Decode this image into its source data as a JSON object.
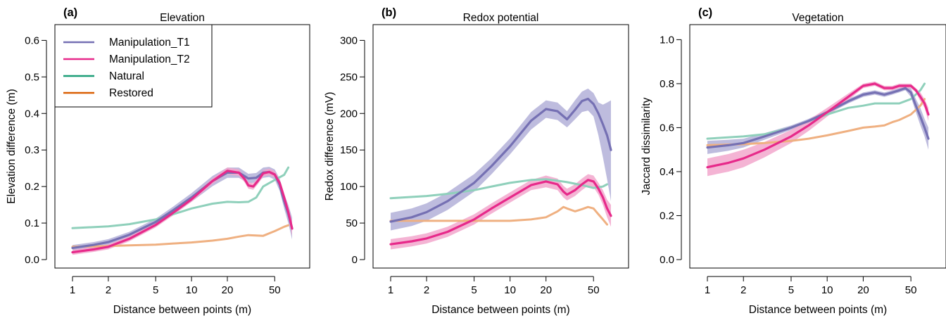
{
  "figure": {
    "xlabel": "Distance between points (m)",
    "legend": {
      "placement": "top-left of panel (a)",
      "entries": [
        {
          "label": "Manipulation_T1",
          "color": "#7570b3"
        },
        {
          "label": "Manipulation_T2",
          "color": "#e7298a"
        },
        {
          "label": "Natural",
          "color": "#1b9e77"
        },
        {
          "label": "Restored",
          "color": "#d95f02"
        }
      ]
    }
  },
  "chart_data": [
    {
      "type": "line",
      "letter": "(a)",
      "title": "Elevation",
      "xlabel": "Distance between points (m)",
      "ylabel": "Elevation difference (m)",
      "xscale": "log",
      "xlim": [
        1,
        70
      ],
      "ylim": [
        0.0,
        0.62
      ],
      "xticks": [
        1,
        2,
        5,
        10,
        20,
        50
      ],
      "yticks": [
        0.0,
        0.1,
        0.2,
        0.3,
        0.4,
        0.5,
        0.6
      ],
      "grid": false,
      "series": [
        {
          "name": "Manipulation_T1",
          "color": "#7570b3",
          "band_color": "#b3b0d8",
          "x": [
            1,
            1.5,
            2,
            3,
            5,
            7,
            10,
            15,
            20,
            25,
            30,
            35,
            40,
            45,
            50,
            55,
            60,
            65,
            70
          ],
          "y": [
            0.032,
            0.04,
            0.048,
            0.068,
            0.103,
            0.135,
            0.17,
            0.215,
            0.238,
            0.238,
            0.222,
            0.224,
            0.238,
            0.24,
            0.233,
            0.205,
            0.16,
            0.125,
            0.085
          ],
          "lower": [
            0.024,
            0.032,
            0.04,
            0.06,
            0.094,
            0.125,
            0.158,
            0.201,
            0.224,
            0.224,
            0.209,
            0.211,
            0.224,
            0.226,
            0.219,
            0.188,
            0.14,
            0.1,
            0.055
          ],
          "upper": [
            0.04,
            0.048,
            0.056,
            0.076,
            0.112,
            0.145,
            0.182,
            0.229,
            0.252,
            0.252,
            0.235,
            0.237,
            0.252,
            0.254,
            0.247,
            0.222,
            0.18,
            0.15,
            0.115
          ]
        },
        {
          "name": "Manipulation_T2",
          "color": "#e7298a",
          "band_color": "#f2a7cd",
          "x": [
            1,
            1.5,
            2,
            3,
            5,
            7,
            10,
            15,
            20,
            25,
            28,
            30,
            33,
            36,
            40,
            45,
            50,
            55,
            60,
            65,
            70
          ],
          "y": [
            0.02,
            0.028,
            0.035,
            0.057,
            0.095,
            0.128,
            0.165,
            0.215,
            0.243,
            0.238,
            0.22,
            0.203,
            0.2,
            0.215,
            0.236,
            0.24,
            0.233,
            0.21,
            0.17,
            0.13,
            0.085
          ],
          "lower": [
            0.013,
            0.021,
            0.028,
            0.05,
            0.088,
            0.121,
            0.158,
            0.207,
            0.234,
            0.229,
            0.211,
            0.194,
            0.191,
            0.206,
            0.227,
            0.231,
            0.224,
            0.2,
            0.158,
            0.115,
            0.065
          ],
          "upper": [
            0.027,
            0.035,
            0.042,
            0.064,
            0.102,
            0.135,
            0.172,
            0.223,
            0.252,
            0.247,
            0.229,
            0.212,
            0.209,
            0.224,
            0.245,
            0.249,
            0.242,
            0.22,
            0.182,
            0.145,
            0.105
          ]
        },
        {
          "name": "Natural",
          "color": "#1b9e77",
          "band_color": "#8fd0bb",
          "x": [
            1,
            2,
            3,
            5,
            7,
            10,
            15,
            20,
            25,
            30,
            35,
            40,
            50,
            60,
            65
          ],
          "y": [
            0.086,
            0.091,
            0.097,
            0.11,
            0.124,
            0.14,
            0.153,
            0.158,
            0.157,
            0.158,
            0.17,
            0.2,
            0.218,
            0.232,
            0.252
          ]
        },
        {
          "name": "Restored",
          "color": "#d95f02",
          "band_color": "#efb081",
          "x": [
            1,
            2,
            3,
            5,
            7,
            10,
            15,
            20,
            25,
            30,
            35,
            40,
            50,
            60,
            65
          ],
          "y": [
            0.035,
            0.037,
            0.039,
            0.041,
            0.044,
            0.047,
            0.052,
            0.057,
            0.063,
            0.067,
            0.066,
            0.065,
            0.078,
            0.09,
            0.094
          ]
        }
      ]
    },
    {
      "type": "line",
      "letter": "(b)",
      "title": "Redox potential",
      "xlabel": "Distance between points (m)",
      "ylabel": "Redox difference (mV)",
      "xscale": "log",
      "xlim": [
        1,
        70
      ],
      "ylim": [
        0,
        310
      ],
      "xticks": [
        1,
        2,
        5,
        10,
        20,
        50
      ],
      "yticks": [
        0,
        50,
        100,
        150,
        200,
        250,
        300
      ],
      "grid": false,
      "series": [
        {
          "name": "Manipulation_T1",
          "color": "#7570b3",
          "band_color": "#b3b0d8",
          "x": [
            1,
            1.5,
            2,
            3,
            5,
            7,
            10,
            15,
            20,
            25,
            30,
            35,
            40,
            45,
            50,
            55,
            60,
            65,
            70
          ],
          "y": [
            52,
            58,
            65,
            80,
            105,
            128,
            155,
            190,
            206,
            203,
            192,
            205,
            217,
            220,
            213,
            200,
            185,
            170,
            150
          ],
          "lower": [
            40,
            46,
            53,
            68,
            93,
            117,
            144,
            178,
            194,
            191,
            181,
            192,
            202,
            204,
            196,
            170,
            140,
            110,
            80
          ],
          "upper": [
            64,
            70,
            77,
            92,
            117,
            139,
            166,
            202,
            218,
            215,
            203,
            218,
            230,
            234,
            228,
            215,
            212,
            215,
            218
          ]
        },
        {
          "name": "Manipulation_T2",
          "color": "#e7298a",
          "band_color": "#f2a7cd",
          "x": [
            1,
            1.5,
            2,
            3,
            5,
            7,
            10,
            15,
            20,
            25,
            28,
            30,
            35,
            40,
            45,
            50,
            55,
            60,
            65,
            70
          ],
          "y": [
            21,
            25,
            29,
            38,
            55,
            70,
            85,
            102,
            107,
            103,
            93,
            89,
            95,
            103,
            109,
            107,
            97,
            85,
            70,
            60
          ],
          "lower": [
            14,
            18,
            22,
            31,
            48,
            63,
            78,
            95,
            99,
            95,
            85,
            81,
            87,
            95,
            101,
            99,
            89,
            75,
            58,
            45
          ],
          "upper": [
            28,
            32,
            36,
            45,
            62,
            77,
            92,
            109,
            115,
            111,
            101,
            97,
            103,
            111,
            117,
            115,
            105,
            95,
            82,
            75
          ]
        },
        {
          "name": "Natural",
          "color": "#1b9e77",
          "band_color": "#8fd0bb",
          "x": [
            1,
            2,
            3,
            5,
            7,
            10,
            15,
            20,
            25,
            30,
            40,
            50,
            60,
            65
          ],
          "y": [
            84,
            87,
            90,
            95,
            100,
            105,
            109,
            110,
            108,
            106,
            102,
            98,
            100,
            103
          ]
        },
        {
          "name": "Restored",
          "color": "#d95f02",
          "band_color": "#efb081",
          "x": [
            1,
            2,
            3,
            5,
            7,
            10,
            15,
            20,
            25,
            28,
            30,
            35,
            40,
            45,
            50,
            55,
            60,
            65
          ],
          "y": [
            53,
            53,
            53,
            53,
            53,
            53,
            55,
            58,
            66,
            72,
            70,
            66,
            69,
            72,
            70,
            62,
            55,
            48
          ]
        }
      ]
    },
    {
      "type": "line",
      "letter": "(c)",
      "title": "Vegetation",
      "xlabel": "Distance between points (m)",
      "ylabel": "Jaccard dissimilarity",
      "xscale": "log",
      "xlim": [
        1,
        70
      ],
      "ylim": [
        0.0,
        1.03
      ],
      "xticks": [
        1,
        2,
        5,
        10,
        20,
        50
      ],
      "yticks": [
        0.0,
        0.2,
        0.4,
        0.6,
        0.8,
        1.0
      ],
      "grid": false,
      "series": [
        {
          "name": "Manipulation_T1",
          "color": "#7570b3",
          "band_color": "#b3b0d8",
          "x": [
            1,
            1.5,
            2,
            3,
            5,
            7,
            10,
            15,
            20,
            25,
            30,
            35,
            40,
            45,
            50,
            55,
            60,
            65,
            70
          ],
          "y": [
            0.51,
            0.52,
            0.53,
            0.56,
            0.6,
            0.63,
            0.67,
            0.72,
            0.75,
            0.76,
            0.75,
            0.76,
            0.77,
            0.78,
            0.76,
            0.7,
            0.65,
            0.6,
            0.55
          ],
          "lower": [
            0.48,
            0.495,
            0.51,
            0.545,
            0.59,
            0.62,
            0.66,
            0.71,
            0.74,
            0.75,
            0.74,
            0.75,
            0.76,
            0.77,
            0.74,
            0.67,
            0.61,
            0.56,
            0.5
          ],
          "upper": [
            0.54,
            0.545,
            0.55,
            0.575,
            0.61,
            0.64,
            0.68,
            0.73,
            0.76,
            0.77,
            0.76,
            0.77,
            0.78,
            0.79,
            0.78,
            0.73,
            0.69,
            0.64,
            0.6
          ]
        },
        {
          "name": "Manipulation_T2",
          "color": "#e7298a",
          "band_color": "#f2a7cd",
          "x": [
            1,
            1.5,
            2,
            3,
            5,
            7,
            10,
            15,
            20,
            25,
            30,
            35,
            40,
            45,
            50,
            55,
            60,
            65,
            70
          ],
          "y": [
            0.42,
            0.44,
            0.46,
            0.5,
            0.56,
            0.61,
            0.67,
            0.74,
            0.79,
            0.8,
            0.78,
            0.78,
            0.79,
            0.79,
            0.79,
            0.77,
            0.74,
            0.71,
            0.66
          ],
          "lower": [
            0.38,
            0.4,
            0.42,
            0.465,
            0.53,
            0.585,
            0.65,
            0.725,
            0.78,
            0.79,
            0.77,
            0.77,
            0.78,
            0.78,
            0.78,
            0.76,
            0.72,
            0.69,
            0.63
          ],
          "upper": [
            0.46,
            0.48,
            0.5,
            0.535,
            0.59,
            0.635,
            0.69,
            0.755,
            0.8,
            0.81,
            0.79,
            0.79,
            0.8,
            0.8,
            0.8,
            0.78,
            0.76,
            0.73,
            0.69
          ]
        },
        {
          "name": "Natural",
          "color": "#1b9e77",
          "band_color": "#8fd0bb",
          "x": [
            1,
            2,
            3,
            5,
            7,
            10,
            15,
            20,
            25,
            30,
            40,
            50,
            60,
            65
          ],
          "y": [
            0.55,
            0.56,
            0.57,
            0.6,
            0.63,
            0.66,
            0.69,
            0.7,
            0.71,
            0.71,
            0.71,
            0.73,
            0.77,
            0.8
          ]
        },
        {
          "name": "Restored",
          "color": "#d95f02",
          "band_color": "#efb081",
          "x": [
            1,
            2,
            3,
            5,
            7,
            10,
            15,
            20,
            25,
            30,
            35,
            40,
            50,
            60,
            65
          ],
          "y": [
            0.52,
            0.525,
            0.53,
            0.54,
            0.55,
            0.565,
            0.585,
            0.6,
            0.605,
            0.61,
            0.625,
            0.635,
            0.66,
            0.7,
            0.73
          ]
        }
      ]
    }
  ]
}
